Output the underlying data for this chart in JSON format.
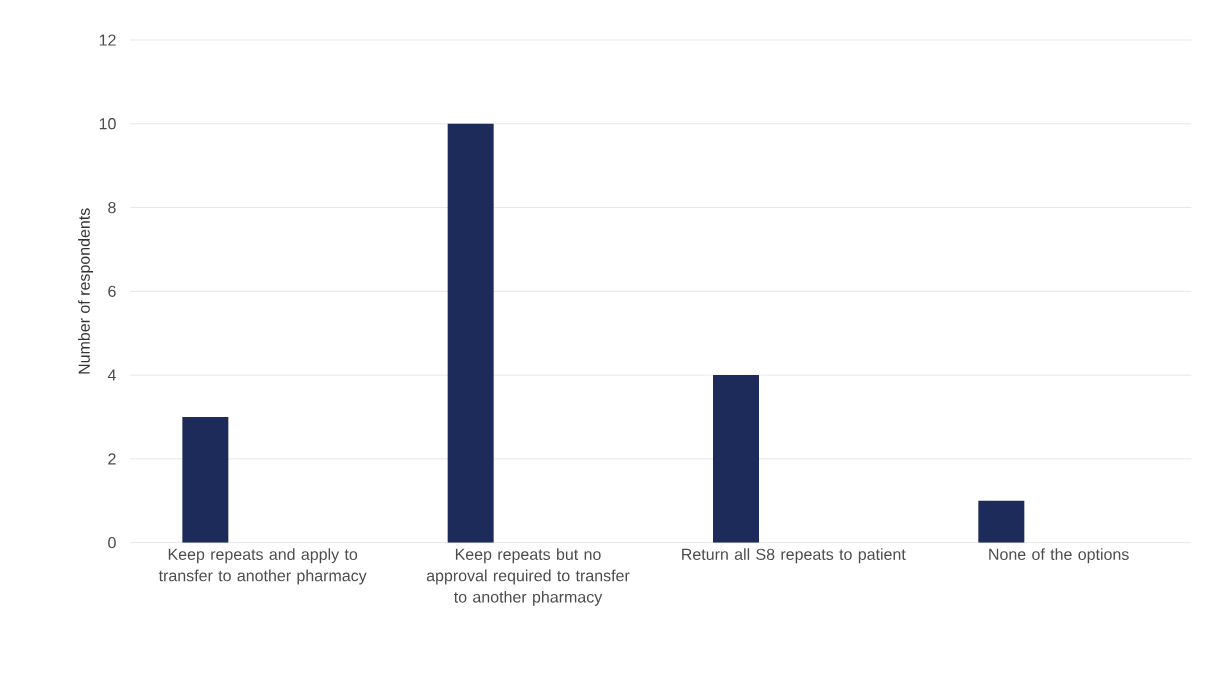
{
  "chart_data": {
    "type": "bar",
    "ylabel": "Number of respondents",
    "categories": [
      "Keep repeats and apply to transfer to another pharmacy",
      "Keep repeats but no approval required to transfer to another pharmacy",
      "Return all S8 repeats to patient",
      "None of the options"
    ],
    "values": [
      3,
      10,
      4,
      1
    ],
    "color": "#1c2b59",
    "ylim": [
      0,
      12
    ],
    "yticks": [
      0,
      2,
      4,
      6,
      8,
      10,
      12
    ],
    "grid": "y"
  }
}
